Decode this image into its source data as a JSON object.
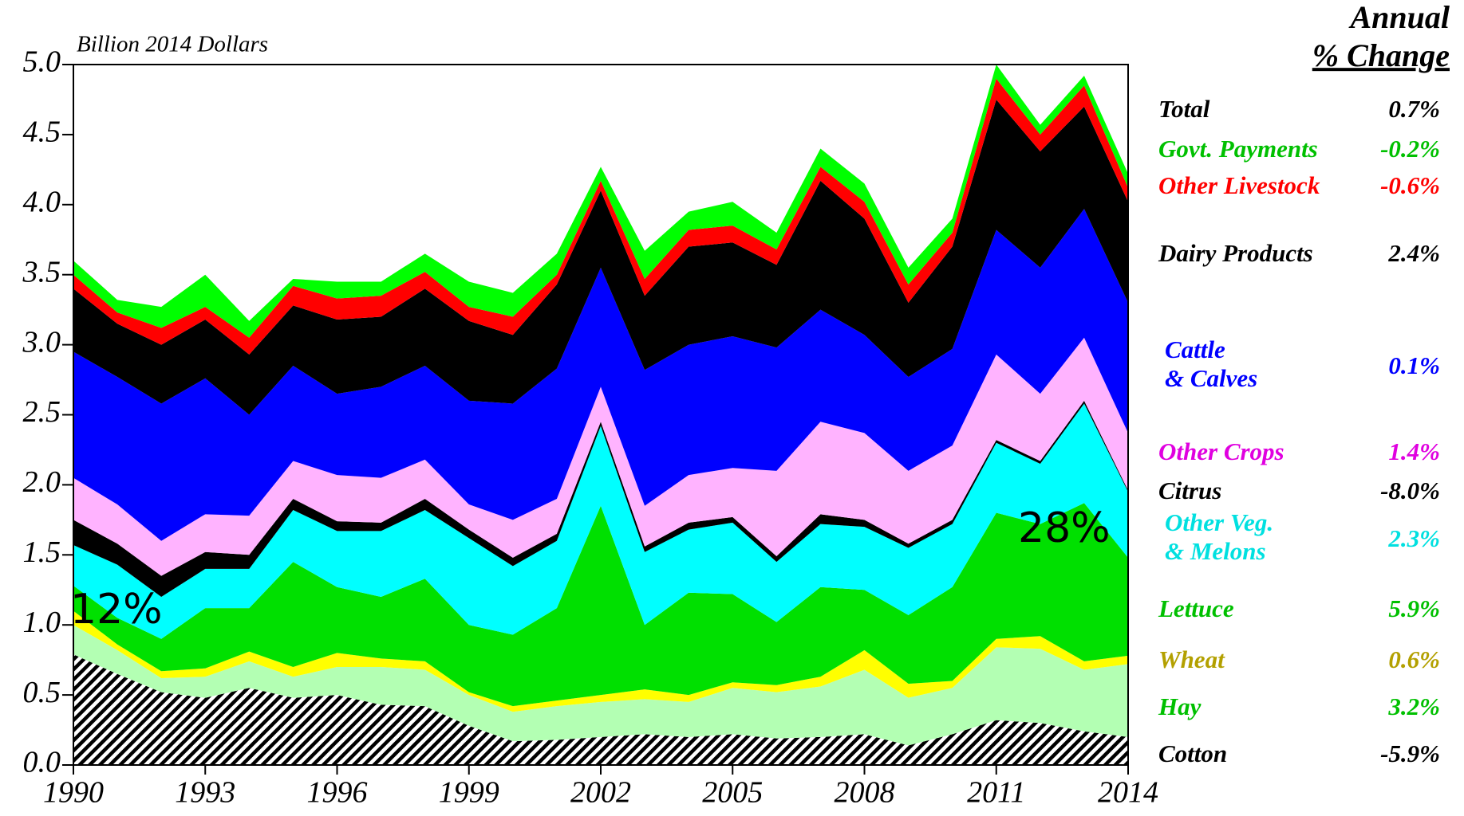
{
  "chart_data": {
    "type": "stacked_area",
    "y_axis_label": "Billion 2014 Dollars",
    "legend_title": [
      "Annual",
      "% Change"
    ],
    "x": [
      1990,
      1991,
      1992,
      1993,
      1994,
      1995,
      1996,
      1997,
      1998,
      1999,
      2000,
      2001,
      2002,
      2003,
      2004,
      2005,
      2006,
      2007,
      2008,
      2009,
      2010,
      2011,
      2012,
      2013,
      2014
    ],
    "xlim": [
      1990,
      2014
    ],
    "xticks": [
      1990,
      1993,
      1996,
      1999,
      2002,
      2005,
      2008,
      2011,
      2014
    ],
    "ylim": [
      0,
      5
    ],
    "yticks": [
      {
        "value": 0,
        "label": "0.0"
      },
      {
        "value": 0.5,
        "label": "0.5"
      },
      {
        "value": 1,
        "label": "1.0"
      },
      {
        "value": 1.5,
        "label": "1.5"
      },
      {
        "value": 2,
        "label": "2.0"
      },
      {
        "value": 2.5,
        "label": "2.5"
      },
      {
        "value": 3,
        "label": "3.0"
      },
      {
        "value": 3.5,
        "label": "3.5"
      },
      {
        "value": 4,
        "label": "4.0"
      },
      {
        "value": 4.5,
        "label": "4.5"
      },
      {
        "value": 5,
        "label": "5.0"
      }
    ],
    "total": {
      "name": "Total",
      "change": {
        "value": 0.7,
        "label": "0.7%"
      },
      "label_color": "#000000"
    },
    "series": [
      {
        "name": "Cotton",
        "color": "#000000",
        "pattern": "hatch",
        "label_color": "#000000",
        "change": {
          "value": -5.9,
          "label": "-5.9%"
        },
        "values": [
          0.79,
          0.65,
          0.52,
          0.48,
          0.55,
          0.48,
          0.5,
          0.43,
          0.42,
          0.28,
          0.17,
          0.18,
          0.2,
          0.22,
          0.2,
          0.22,
          0.19,
          0.2,
          0.22,
          0.14,
          0.22,
          0.32,
          0.3,
          0.24,
          0.2
        ]
      },
      {
        "name": "Hay",
        "color": "#b3ffb3",
        "label_color": "#00c000",
        "change": {
          "value": 3.2,
          "label": "3.2%"
        },
        "values": [
          0.21,
          0.17,
          0.1,
          0.15,
          0.19,
          0.15,
          0.2,
          0.27,
          0.26,
          0.22,
          0.21,
          0.24,
          0.25,
          0.25,
          0.25,
          0.33,
          0.33,
          0.36,
          0.46,
          0.34,
          0.33,
          0.52,
          0.53,
          0.44,
          0.52
        ]
      },
      {
        "name": "Wheat",
        "color": "#ffff00",
        "label_color": "#b3a000",
        "change": {
          "value": 0.6,
          "label": "0.6%"
        },
        "values": [
          0.1,
          0.04,
          0.05,
          0.06,
          0.07,
          0.07,
          0.1,
          0.06,
          0.06,
          0.02,
          0.04,
          0.04,
          0.05,
          0.07,
          0.05,
          0.04,
          0.05,
          0.07,
          0.14,
          0.1,
          0.05,
          0.06,
          0.09,
          0.06,
          0.06
        ]
      },
      {
        "name": "Lettuce",
        "color": "#00e000",
        "label_color": "#00c000",
        "change": {
          "value": 5.9,
          "label": "5.9%"
        },
        "values": [
          0.18,
          0.19,
          0.23,
          0.43,
          0.31,
          0.75,
          0.47,
          0.44,
          0.59,
          0.48,
          0.51,
          0.66,
          1.35,
          0.46,
          0.73,
          0.63,
          0.45,
          0.64,
          0.43,
          0.49,
          0.67,
          0.9,
          0.8,
          1.13,
          0.7
        ]
      },
      {
        "name": "Other Veg. & Melons",
        "color": "#00ffff",
        "label_color": "#00e0e0",
        "change": {
          "value": 2.3,
          "label": "2.3%"
        },
        "values": [
          0.29,
          0.38,
          0.3,
          0.28,
          0.28,
          0.37,
          0.4,
          0.47,
          0.49,
          0.62,
          0.49,
          0.48,
          0.57,
          0.52,
          0.45,
          0.51,
          0.43,
          0.45,
          0.45,
          0.48,
          0.45,
          0.5,
          0.43,
          0.71,
          0.47
        ]
      },
      {
        "name": "Citrus",
        "color": "#000000",
        "label_color": "#000000",
        "change": {
          "value": -8.0,
          "label": "-8.0%"
        },
        "values": [
          0.18,
          0.15,
          0.15,
          0.12,
          0.1,
          0.08,
          0.07,
          0.06,
          0.08,
          0.06,
          0.06,
          0.05,
          0.03,
          0.04,
          0.05,
          0.04,
          0.04,
          0.07,
          0.05,
          0.03,
          0.03,
          0.02,
          0.02,
          0.02,
          0.01
        ]
      },
      {
        "name": "Other Crops",
        "color": "#ffb3ff",
        "label_color": "#e000e0",
        "change": {
          "value": 1.4,
          "label": "1.4%"
        },
        "values": [
          0.3,
          0.28,
          0.25,
          0.27,
          0.28,
          0.27,
          0.33,
          0.32,
          0.28,
          0.18,
          0.27,
          0.25,
          0.25,
          0.29,
          0.34,
          0.35,
          0.61,
          0.66,
          0.62,
          0.52,
          0.53,
          0.61,
          0.48,
          0.45,
          0.41
        ]
      },
      {
        "name": "Cattle & Calves",
        "color": "#0000ff",
        "label_color": "#0000ff",
        "change": {
          "value": 0.1,
          "label": "0.1%"
        },
        "values": [
          0.9,
          0.91,
          0.98,
          0.97,
          0.72,
          0.68,
          0.58,
          0.65,
          0.67,
          0.74,
          0.83,
          0.93,
          0.85,
          0.97,
          0.93,
          0.94,
          0.88,
          0.8,
          0.7,
          0.67,
          0.69,
          0.89,
          0.9,
          0.92,
          0.93
        ]
      },
      {
        "name": "Dairy Products",
        "color": "#000000",
        "label_color": "#000000",
        "change": {
          "value": 2.4,
          "label": "2.4%"
        },
        "values": [
          0.45,
          0.38,
          0.42,
          0.42,
          0.43,
          0.43,
          0.53,
          0.5,
          0.55,
          0.57,
          0.49,
          0.6,
          0.55,
          0.53,
          0.7,
          0.67,
          0.59,
          0.92,
          0.83,
          0.53,
          0.73,
          0.93,
          0.83,
          0.73,
          0.72
        ]
      },
      {
        "name": "Other Livestock",
        "color": "#ff0000",
        "label_color": "#ff0000",
        "change": {
          "value": -0.6,
          "label": "-0.6%"
        },
        "values": [
          0.1,
          0.08,
          0.12,
          0.09,
          0.12,
          0.14,
          0.15,
          0.15,
          0.12,
          0.1,
          0.13,
          0.07,
          0.07,
          0.12,
          0.12,
          0.12,
          0.11,
          0.1,
          0.12,
          0.13,
          0.1,
          0.15,
          0.12,
          0.15,
          0.1
        ]
      },
      {
        "name": "Govt. Payments",
        "color": "#00ff00",
        "label_color": "#00c000",
        "change": {
          "value": -0.2,
          "label": "-0.2%"
        },
        "values": [
          0.1,
          0.09,
          0.15,
          0.23,
          0.12,
          0.05,
          0.12,
          0.1,
          0.13,
          0.18,
          0.17,
          0.15,
          0.1,
          0.2,
          0.13,
          0.17,
          0.12,
          0.13,
          0.13,
          0.12,
          0.1,
          0.1,
          0.07,
          0.07,
          0.1
        ]
      }
    ],
    "annotations": [
      "12%",
      "28%"
    ]
  }
}
